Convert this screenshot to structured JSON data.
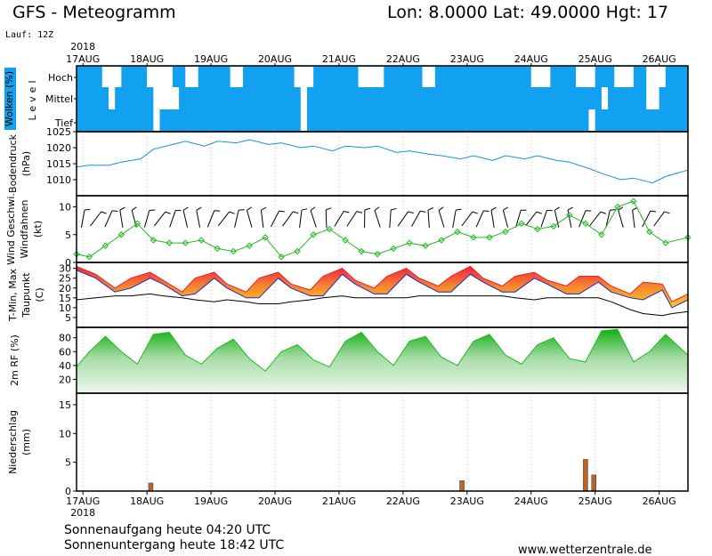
{
  "header": {
    "title": "GFS - Meteogramm",
    "location": "Lon: 8.0000  Lat: 49.0000  Hgt: 17",
    "run": "Lauf: 12Z"
  },
  "footer": {
    "sunrise": "Sonnenaufgang heute 04:20 UTC",
    "sunset": "Sonnenuntergang heute 18:42 UTC",
    "source": "www.wetterzentrale.de"
  },
  "colors": {
    "cloud": "#12a0f0",
    "pressure": "#1a8fe0",
    "wind": "#22bb22",
    "tmin": "#2222cc",
    "tmax": "#ee2222",
    "dewpoint": "#000000",
    "humidity": "#22bb22",
    "precip": "#b5652a"
  },
  "chart_data": {
    "type": "line",
    "year": "2018",
    "dates": [
      "17AUG",
      "18AUG",
      "19AUG",
      "20AUG",
      "21AUG",
      "22AUG",
      "23AUG",
      "24AUG",
      "25AUG",
      "26AUG"
    ],
    "x_start_day": 16.9,
    "x_end_day": 26.45,
    "panels": [
      {
        "id": "clouds",
        "type": "heatmap",
        "label_lines": [
          "Wolken (%)",
          "Level"
        ],
        "levels": [
          "Hoch",
          "Mittel",
          "Tief"
        ],
        "cloud_gaps": {
          "Hoch": [
            [
              17.3,
              17.6
            ],
            [
              18.0,
              18.4
            ],
            [
              18.6,
              18.8
            ],
            [
              19.3,
              19.5
            ],
            [
              20.3,
              20.6
            ],
            [
              21.3,
              21.7
            ],
            [
              22.3,
              22.5
            ],
            [
              24.0,
              24.3
            ],
            [
              24.7,
              25.0
            ],
            [
              25.3,
              25.6
            ],
            [
              25.8,
              26.1
            ]
          ],
          "Mittel": [
            [
              17.4,
              17.5
            ],
            [
              18.1,
              18.5
            ],
            [
              20.4,
              20.5
            ],
            [
              25.1,
              25.2
            ],
            [
              25.8,
              26.0
            ]
          ],
          "Tief": [
            [
              18.1,
              18.2
            ],
            [
              20.4,
              20.5
            ],
            [
              24.9,
              25.0
            ]
          ]
        }
      },
      {
        "id": "pressure",
        "label_lines": [
          "Bodendruck",
          "(hPa)"
        ],
        "ylim": [
          1005,
          1025
        ],
        "yticks": [
          1010,
          1015,
          1020,
          1025
        ],
        "x": [
          16.9,
          17.1,
          17.4,
          17.6,
          17.9,
          18.1,
          18.4,
          18.6,
          18.9,
          19.1,
          19.4,
          19.6,
          19.9,
          20.1,
          20.4,
          20.6,
          20.9,
          21.1,
          21.4,
          21.6,
          21.9,
          22.1,
          22.4,
          22.6,
          22.9,
          23.1,
          23.4,
          23.6,
          23.9,
          24.1,
          24.4,
          24.6,
          24.9,
          25.1,
          25.4,
          25.6,
          25.9,
          26.1,
          26.45
        ],
        "values": [
          1014,
          1014.5,
          1014.5,
          1015.5,
          1016.5,
          1019.5,
          1021,
          1022,
          1020.5,
          1022,
          1021.5,
          1022.5,
          1021,
          1021.5,
          1020,
          1020.5,
          1019,
          1020.5,
          1020,
          1020.5,
          1018.5,
          1019,
          1018,
          1017.5,
          1016.5,
          1017.5,
          1016,
          1017.5,
          1016.5,
          1017.5,
          1016,
          1015.5,
          1013.5,
          1012,
          1010,
          1010.5,
          1009,
          1011,
          1013
        ]
      },
      {
        "id": "wind",
        "label_lines": [
          "Wind Geschwi.",
          "Windfahnen",
          "(kt)"
        ],
        "ylim": [
          0,
          12
        ],
        "yticks": [
          0,
          5,
          10
        ],
        "x": [
          16.9,
          17.1,
          17.35,
          17.6,
          17.85,
          18.1,
          18.35,
          18.6,
          18.85,
          19.1,
          19.35,
          19.6,
          19.85,
          20.1,
          20.35,
          20.6,
          20.85,
          21.1,
          21.35,
          21.6,
          21.85,
          22.1,
          22.35,
          22.6,
          22.85,
          23.1,
          23.35,
          23.6,
          23.85,
          24.1,
          24.35,
          24.6,
          24.85,
          25.1,
          25.35,
          25.6,
          25.85,
          26.1,
          26.45
        ],
        "values": [
          1.5,
          1,
          3,
          5,
          7,
          4,
          3.5,
          3.5,
          4,
          2.5,
          2,
          3,
          4.5,
          1,
          2,
          5,
          6,
          4,
          2,
          1.5,
          2.5,
          3.5,
          3,
          4,
          5.5,
          4.5,
          4.5,
          5.5,
          7,
          6,
          6.5,
          8.5,
          7,
          5,
          10,
          11,
          5.5,
          3.5,
          4.5
        ]
      },
      {
        "id": "temperature",
        "label_lines": [
          "T-Min, Max",
          "Taupunkt",
          "(C)"
        ],
        "ylim": [
          0,
          33
        ],
        "yticks": [
          5,
          10,
          15,
          20,
          25,
          30
        ],
        "x": [
          16.9,
          17.2,
          17.5,
          17.75,
          18.05,
          18.25,
          18.55,
          18.75,
          19.05,
          19.25,
          19.55,
          19.75,
          20.05,
          20.25,
          20.55,
          20.75,
          21.05,
          21.25,
          21.55,
          21.75,
          22.05,
          22.25,
          22.55,
          22.75,
          23.05,
          23.25,
          23.55,
          23.75,
          24.05,
          24.25,
          24.55,
          24.75,
          25.05,
          25.25,
          25.55,
          25.75,
          26.05,
          26.2,
          26.45
        ],
        "tmax": [
          31,
          27,
          20,
          25,
          28,
          24,
          18,
          25,
          28,
          22,
          18,
          25,
          28,
          22,
          19,
          26,
          30,
          24,
          20,
          26,
          30,
          25,
          21,
          26,
          31,
          25,
          21,
          26,
          28,
          24,
          21,
          26,
          26,
          21,
          17,
          23,
          22,
          13,
          17
        ],
        "tmin": [
          29,
          25,
          18,
          20,
          25,
          22,
          16,
          17,
          25,
          20,
          15,
          15,
          25,
          20,
          16,
          16,
          27,
          22,
          17,
          17,
          27,
          23,
          18,
          18,
          27,
          23,
          18,
          18,
          25,
          22,
          17,
          17,
          23,
          18,
          15,
          14,
          19,
          10,
          14
        ],
        "dewpoint": [
          14,
          15,
          16,
          16,
          17,
          16,
          15,
          14,
          13,
          14,
          13,
          12,
          12,
          13,
          14,
          15,
          16,
          15,
          15,
          15,
          15,
          16,
          16,
          16,
          16,
          16,
          16,
          15,
          14,
          15,
          15,
          15,
          15,
          13,
          9,
          7,
          6,
          7,
          8
        ]
      },
      {
        "id": "humidity",
        "type": "area",
        "label_lines": [
          "2m RF (%)"
        ],
        "ylim": [
          0,
          95
        ],
        "yticks": [
          20,
          40,
          60,
          80
        ],
        "x": [
          16.9,
          17.1,
          17.35,
          17.6,
          17.85,
          18.1,
          18.35,
          18.6,
          18.85,
          19.1,
          19.35,
          19.6,
          19.85,
          20.1,
          20.35,
          20.6,
          20.85,
          21.1,
          21.35,
          21.6,
          21.85,
          22.1,
          22.35,
          22.6,
          22.85,
          23.1,
          23.35,
          23.6,
          23.85,
          24.1,
          24.35,
          24.6,
          24.85,
          25.1,
          25.35,
          25.6,
          25.85,
          26.1,
          26.45
        ],
        "values": [
          38,
          60,
          82,
          60,
          42,
          85,
          88,
          55,
          42,
          65,
          78,
          50,
          32,
          60,
          70,
          48,
          38,
          75,
          88,
          60,
          40,
          75,
          82,
          52,
          40,
          75,
          85,
          55,
          42,
          70,
          80,
          50,
          45,
          90,
          92,
          45,
          60,
          85,
          55
        ]
      },
      {
        "id": "precip",
        "type": "bar",
        "label_lines": [
          "Niederschlag",
          "(mm)"
        ],
        "ylim": [
          0,
          17
        ],
        "yticks": [
          0,
          5,
          10,
          15
        ],
        "x": [
          18.06,
          22.92,
          24.85,
          24.98
        ],
        "values": [
          1.4,
          1.8,
          5.5,
          2.8
        ]
      }
    ]
  }
}
